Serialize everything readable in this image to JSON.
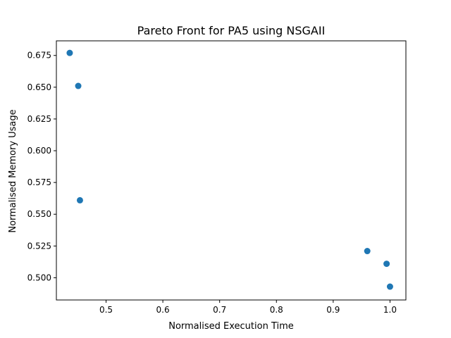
{
  "chart_data": {
    "type": "scatter",
    "title": "Pareto Front for PA5 using NSGAII",
    "xlabel": "Normalised Execution Time",
    "ylabel": "Normalised Memory Usage",
    "xlim": [
      0.4125,
      1.028
    ],
    "ylim": [
      0.4825,
      0.6865
    ],
    "xticks": [
      "0.5",
      "0.6",
      "0.7",
      "0.8",
      "0.9",
      "1.0"
    ],
    "yticks": [
      "0.500",
      "0.525",
      "0.550",
      "0.575",
      "0.600",
      "0.625",
      "0.650",
      "0.675"
    ],
    "grid": false,
    "points": [
      {
        "x": 0.436,
        "y": 0.677
      },
      {
        "x": 0.451,
        "y": 0.651
      },
      {
        "x": 0.454,
        "y": 0.561
      },
      {
        "x": 0.96,
        "y": 0.521
      },
      {
        "x": 0.994,
        "y": 0.511
      },
      {
        "x": 1.0,
        "y": 0.493
      }
    ],
    "marker_color": "#1f77b4"
  }
}
